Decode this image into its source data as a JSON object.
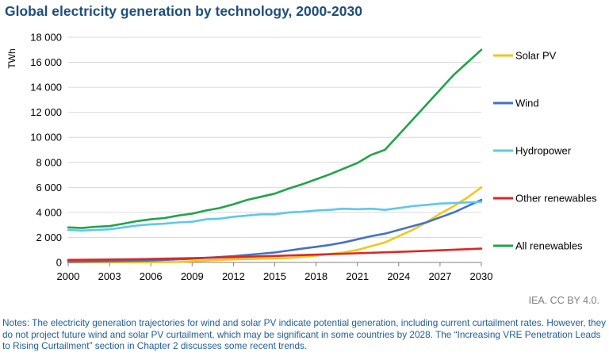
{
  "title": "Global electricity generation by technology, 2000-2030",
  "credit": "IEA. CC BY 4.0.",
  "notes": "Notes: The electricity generation trajectories for wind and solar PV indicate potential generation, including current curtailment rates. However, they do not project future wind and solar PV curtailment, which may be significant in some countries by 2028. The “Increasing VRE Penetration Leads to Rising Curtailment” section in Chapter 2 discusses some recent trends.",
  "chart_data": {
    "type": "line",
    "ylabel": "TWh",
    "xlabel": "",
    "xlim": [
      2000,
      2030
    ],
    "ylim": [
      0,
      18000
    ],
    "x_ticks": [
      "2000",
      "2003",
      "2006",
      "2009",
      "2012",
      "2015",
      "2018",
      "2021",
      "2024",
      "2027",
      "2030"
    ],
    "y_ticks": [
      "0",
      "2 000",
      "4 000",
      "6 000",
      "8 000",
      "10 000",
      "12 000",
      "14 000",
      "16 000",
      "18 000"
    ],
    "grid": "horizontal",
    "legend": "right",
    "series": [
      {
        "name": "Solar PV",
        "color": "#f5c518",
        "x": [
          2000,
          2005,
          2008,
          2010,
          2012,
          2014,
          2016,
          2018,
          2020,
          2021,
          2022,
          2023,
          2024,
          2025,
          2026,
          2027,
          2028,
          2029,
          2030
        ],
        "y": [
          0,
          10,
          40,
          150,
          250,
          300,
          350,
          550,
          800,
          1000,
          1300,
          1600,
          2100,
          2600,
          3200,
          3900,
          4500,
          5200,
          6000
        ]
      },
      {
        "name": "Wind",
        "color": "#4472c4",
        "x": [
          2000,
          2003,
          2006,
          2009,
          2012,
          2013,
          2014,
          2015,
          2016,
          2017,
          2018,
          2019,
          2020,
          2021,
          2022,
          2023,
          2024,
          2025,
          2026,
          2027,
          2028,
          2029,
          2030
        ],
        "y": [
          50,
          100,
          150,
          300,
          500,
          600,
          700,
          800,
          950,
          1100,
          1250,
          1400,
          1600,
          1850,
          2100,
          2300,
          2600,
          2900,
          3200,
          3600,
          4000,
          4500,
          5000
        ]
      },
      {
        "name": "Hydropower",
        "color": "#5bc8ef",
        "x": [
          2000,
          2001,
          2002,
          2003,
          2004,
          2005,
          2006,
          2007,
          2008,
          2009,
          2010,
          2011,
          2012,
          2013,
          2014,
          2015,
          2016,
          2017,
          2018,
          2019,
          2020,
          2021,
          2022,
          2023,
          2024,
          2025,
          2026,
          2027,
          2028,
          2029,
          2030
        ],
        "y": [
          2600,
          2550,
          2600,
          2650,
          2800,
          2950,
          3050,
          3100,
          3200,
          3250,
          3450,
          3500,
          3650,
          3750,
          3850,
          3850,
          4000,
          4050,
          4150,
          4200,
          4300,
          4250,
          4300,
          4200,
          4350,
          4500,
          4600,
          4700,
          4750,
          4800,
          4850
        ]
      },
      {
        "name": "Other renewables",
        "color": "#e02525",
        "x": [
          2000,
          2005,
          2010,
          2015,
          2020,
          2025,
          2030
        ],
        "y": [
          200,
          260,
          370,
          520,
          700,
          880,
          1100
        ]
      },
      {
        "name": "All renewables",
        "color": "#1fa44a",
        "x": [
          2000,
          2001,
          2002,
          2003,
          2004,
          2005,
          2006,
          2007,
          2008,
          2009,
          2010,
          2011,
          2012,
          2013,
          2014,
          2015,
          2016,
          2017,
          2018,
          2019,
          2020,
          2021,
          2022,
          2023,
          2024,
          2025,
          2026,
          2027,
          2028,
          2029,
          2030
        ],
        "y": [
          2800,
          2750,
          2850,
          2900,
          3100,
          3300,
          3450,
          3550,
          3750,
          3900,
          4150,
          4350,
          4650,
          5000,
          5250,
          5500,
          5900,
          6250,
          6650,
          7050,
          7500,
          7950,
          8600,
          9000,
          10200,
          11400,
          12600,
          13800,
          15000,
          16000,
          17000
        ]
      }
    ]
  }
}
